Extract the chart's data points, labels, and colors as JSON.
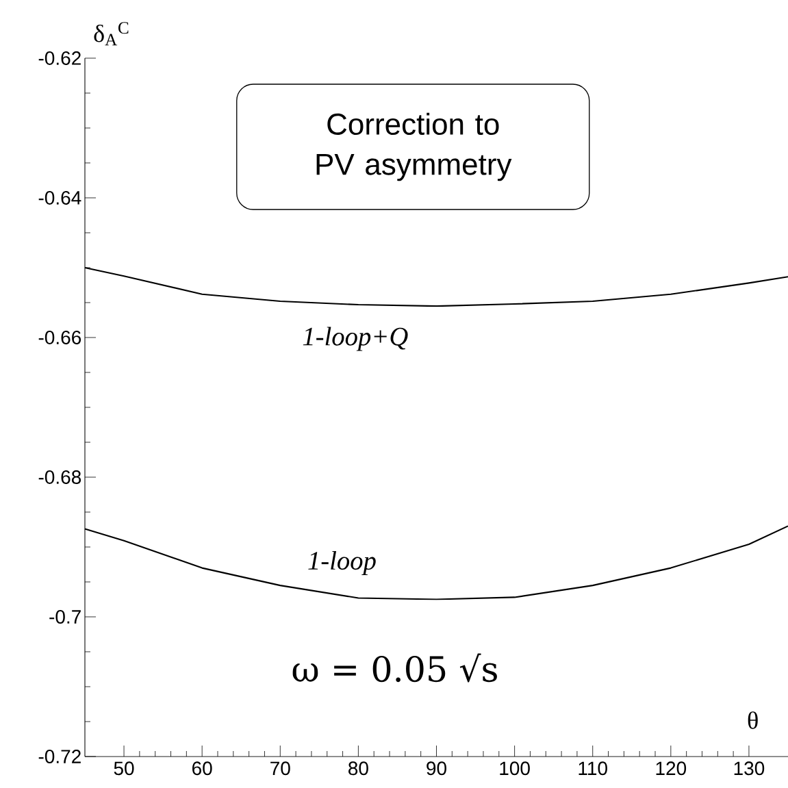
{
  "chart_data": {
    "type": "line",
    "xlabel": "θ",
    "ylabel": "δ$_{A}$$^{C}$",
    "x": [
      45,
      50,
      60,
      70,
      80,
      90,
      100,
      110,
      120,
      130,
      135
    ],
    "series": [
      {
        "name": "1-loop+Q",
        "color": "#000000",
        "values": [
          -0.65,
          -0.6512,
          -0.6538,
          -0.6548,
          -0.6553,
          -0.6555,
          -0.6552,
          -0.6548,
          -0.6538,
          -0.6522,
          -0.6513
        ]
      },
      {
        "name": "1-loop",
        "color": "#000000",
        "values": [
          -0.6874,
          -0.6891,
          -0.693,
          -0.6955,
          -0.6973,
          -0.6975,
          -0.6972,
          -0.6955,
          -0.693,
          -0.6896,
          -0.687
        ]
      }
    ],
    "annotations": [
      "Correction to PV asymmetry",
      "ω = 0.05 √s"
    ],
    "xlim": [
      45,
      135
    ],
    "ylim": [
      -0.72,
      -0.62
    ],
    "xticks": [
      50,
      60,
      70,
      80,
      90,
      100,
      110,
      120,
      130
    ],
    "yticks": [
      -0.72,
      -0.7,
      -0.68,
      -0.66,
      -0.64,
      -0.62
    ],
    "grid": false,
    "legend": false,
    "marker": "none",
    "line_style": "solid"
  }
}
